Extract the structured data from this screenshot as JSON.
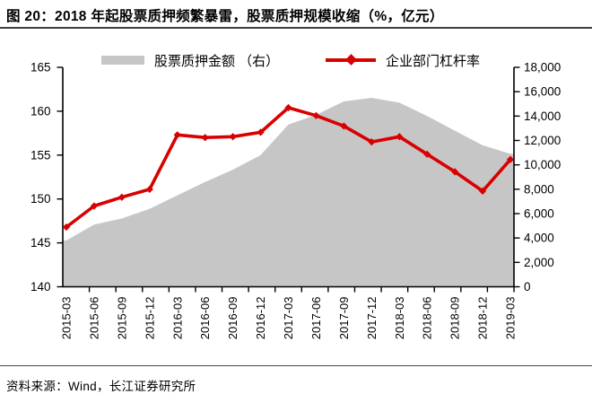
{
  "title": "图 20：2018 年起股票质押频繁暴雷，股票质押规模收缩（%，亿元）",
  "source": "资料来源：Wind，长江证券研究所",
  "colors": {
    "line_red": "#d90000",
    "area_gray": "#c6c6c6",
    "axis_black": "#000000",
    "rule_dark": "#3d3d3d"
  },
  "chart_data": {
    "type": "combo-area-line",
    "categories": [
      "2015-03",
      "2015-06",
      "2015-09",
      "2015-12",
      "2016-03",
      "2016-06",
      "2016-09",
      "2016-12",
      "2017-03",
      "2017-06",
      "2017-09",
      "2017-12",
      "2018-03",
      "2018-06",
      "2018-09",
      "2018-12",
      "2019-03"
    ],
    "series": [
      {
        "name": "股票质押金额 （右）",
        "type": "area",
        "axis": "right",
        "color": "#c6c6c6",
        "values": [
          3800,
          5100,
          5600,
          6400,
          7500,
          8600,
          9600,
          10800,
          13300,
          14100,
          15200,
          15500,
          15100,
          14000,
          12800,
          11600,
          10900
        ]
      },
      {
        "name": "企业部门杠杆率",
        "type": "line",
        "axis": "left",
        "color": "#d90000",
        "marker": "diamond",
        "values": [
          146.8,
          149.2,
          150.2,
          151.1,
          157.3,
          157.0,
          157.1,
          157.6,
          160.4,
          159.5,
          158.3,
          156.5,
          157.1,
          155.1,
          153.1,
          150.9,
          154.5
        ]
      }
    ],
    "left_axis": {
      "min": 140,
      "max": 165,
      "step": 5,
      "tick_labels": [
        "165",
        "160",
        "155",
        "150",
        "145",
        "140"
      ]
    },
    "right_axis": {
      "min": 0,
      "max": 18000,
      "step": 2000,
      "tick_labels": [
        "18,000",
        "16,000",
        "14,000",
        "12,000",
        "10,000",
        "8,000",
        "6,000",
        "4,000",
        "2,000",
        "0"
      ]
    },
    "legend_position": "top",
    "grid": false,
    "x_label_rotation": -90
  }
}
